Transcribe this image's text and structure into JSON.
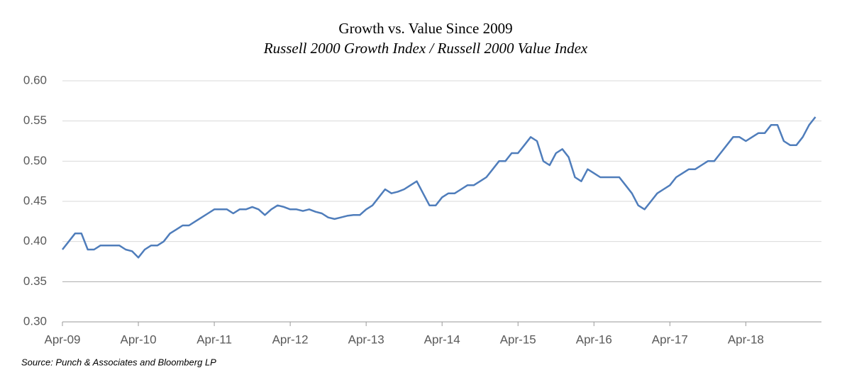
{
  "chart_data": {
    "type": "line",
    "title": "Growth vs. Value Since 2009",
    "subtitle": "Russell 2000 Growth Index / Russell 2000 Value Index",
    "source": "Source: Punch & Associates and Bloomberg LP",
    "categories": [
      "Apr-09",
      "May-09",
      "Jun-09",
      "Jul-09",
      "Aug-09",
      "Sep-09",
      "Oct-09",
      "Nov-09",
      "Dec-09",
      "Jan-10",
      "Feb-10",
      "Mar-10",
      "Apr-10",
      "May-10",
      "Jun-10",
      "Jul-10",
      "Aug-10",
      "Sep-10",
      "Oct-10",
      "Nov-10",
      "Dec-10",
      "Jan-11",
      "Feb-11",
      "Mar-11",
      "Apr-11",
      "May-11",
      "Jun-11",
      "Jul-11",
      "Aug-11",
      "Sep-11",
      "Oct-11",
      "Nov-11",
      "Dec-11",
      "Jan-12",
      "Feb-12",
      "Mar-12",
      "Apr-12",
      "May-12",
      "Jun-12",
      "Jul-12",
      "Aug-12",
      "Sep-12",
      "Oct-12",
      "Nov-12",
      "Dec-12",
      "Jan-13",
      "Feb-13",
      "Mar-13",
      "Apr-13",
      "May-13",
      "Jun-13",
      "Jul-13",
      "Aug-13",
      "Sep-13",
      "Oct-13",
      "Nov-13",
      "Dec-13",
      "Jan-14",
      "Feb-14",
      "Mar-14",
      "Apr-14",
      "May-14",
      "Jun-14",
      "Jul-14",
      "Aug-14",
      "Sep-14",
      "Oct-14",
      "Nov-14",
      "Dec-14",
      "Jan-15",
      "Feb-15",
      "Mar-15",
      "Apr-15",
      "May-15",
      "Jun-15",
      "Jul-15",
      "Aug-15",
      "Sep-15",
      "Oct-15",
      "Nov-15",
      "Dec-15",
      "Jan-16",
      "Feb-16",
      "Mar-16",
      "Apr-16",
      "May-16",
      "Jun-16",
      "Jul-16",
      "Aug-16",
      "Sep-16",
      "Oct-16",
      "Nov-16",
      "Dec-16",
      "Jan-17",
      "Feb-17",
      "Mar-17",
      "Apr-17",
      "May-17",
      "Jun-17",
      "Jul-17",
      "Aug-17",
      "Sep-17",
      "Oct-17",
      "Nov-17",
      "Dec-17",
      "Jan-18",
      "Feb-18",
      "Mar-18",
      "Apr-18",
      "May-18",
      "Jun-18",
      "Jul-18",
      "Aug-18",
      "Sep-18",
      "Oct-18",
      "Nov-18",
      "Dec-18",
      "Jan-19",
      "Feb-19",
      "Mar-19"
    ],
    "values": [
      0.39,
      0.4,
      0.41,
      0.41,
      0.39,
      0.39,
      0.395,
      0.395,
      0.395,
      0.395,
      0.39,
      0.388,
      0.38,
      0.39,
      0.395,
      0.395,
      0.4,
      0.41,
      0.415,
      0.42,
      0.42,
      0.425,
      0.43,
      0.435,
      0.44,
      0.44,
      0.44,
      0.435,
      0.44,
      0.44,
      0.443,
      0.44,
      0.433,
      0.44,
      0.445,
      0.443,
      0.44,
      0.44,
      0.438,
      0.44,
      0.437,
      0.435,
      0.43,
      0.428,
      0.43,
      0.432,
      0.433,
      0.433,
      0.44,
      0.445,
      0.455,
      0.465,
      0.46,
      0.462,
      0.465,
      0.47,
      0.475,
      0.46,
      0.445,
      0.445,
      0.455,
      0.46,
      0.46,
      0.465,
      0.47,
      0.47,
      0.475,
      0.48,
      0.49,
      0.5,
      0.5,
      0.51,
      0.51,
      0.52,
      0.53,
      0.525,
      0.5,
      0.495,
      0.51,
      0.515,
      0.505,
      0.48,
      0.475,
      0.49,
      0.485,
      0.48,
      0.48,
      0.48,
      0.48,
      0.47,
      0.46,
      0.445,
      0.44,
      0.45,
      0.46,
      0.465,
      0.47,
      0.48,
      0.485,
      0.49,
      0.49,
      0.495,
      0.5,
      0.5,
      0.51,
      0.52,
      0.53,
      0.53,
      0.525,
      0.53,
      0.535,
      0.535,
      0.545,
      0.545,
      0.525,
      0.52,
      0.52,
      0.53,
      0.545,
      0.555
    ],
    "color": "#4f7dbb",
    "xticks": [
      "Apr-09",
      "Apr-10",
      "Apr-11",
      "Apr-12",
      "Apr-13",
      "Apr-14",
      "Apr-15",
      "Apr-16",
      "Apr-17",
      "Apr-18"
    ],
    "ylim": [
      0.3,
      0.6
    ],
    "yticks": [
      {
        "value": 0.3,
        "label": "0.30"
      },
      {
        "value": 0.35,
        "label": "0.35"
      },
      {
        "value": 0.4,
        "label": "0.40"
      },
      {
        "value": 0.45,
        "label": "0.45"
      },
      {
        "value": 0.5,
        "label": "0.50"
      },
      {
        "value": 0.55,
        "label": "0.55"
      },
      {
        "value": 0.6,
        "label": "0.60"
      }
    ],
    "grid": true
  }
}
